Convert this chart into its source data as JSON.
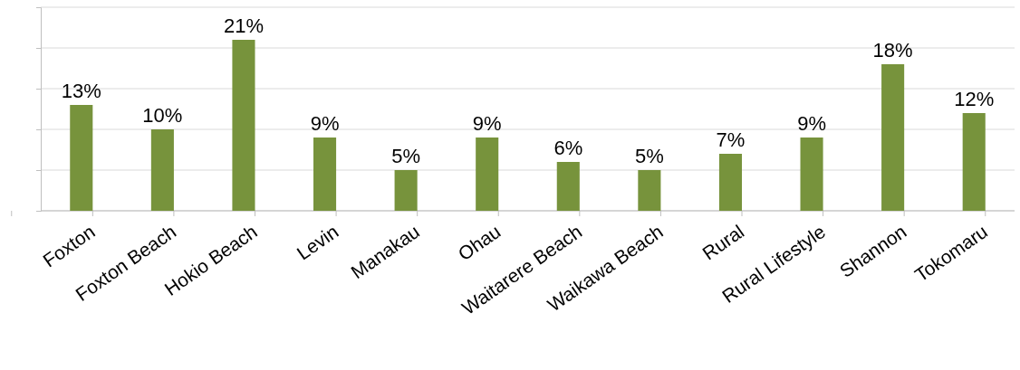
{
  "chart_data": {
    "type": "bar",
    "categories": [
      "Foxton",
      "Foxton Beach",
      "Hokio Beach",
      "Levin",
      "Manakau",
      "Ohau",
      "Waitarere Beach",
      "Waikawa Beach",
      "Rural",
      "Rural Lifestyle",
      "Shannon",
      "Tokomaru"
    ],
    "values": [
      13,
      10,
      21,
      9,
      5,
      9,
      6,
      5,
      7,
      9,
      18,
      12
    ],
    "value_labels": [
      "13%",
      "10%",
      "21%",
      "9%",
      "5%",
      "9%",
      "6%",
      "5%",
      "7%",
      "9%",
      "18%",
      "12%"
    ],
    "color": "#77933c",
    "ylim": [
      0,
      25
    ],
    "yticks": [
      {
        "value": 0,
        "label": null
      },
      {
        "value": 5,
        "label": null
      },
      {
        "value": 10,
        "label": null
      },
      {
        "value": 15,
        "label": null
      },
      {
        "value": 20,
        "label": null
      },
      {
        "value": 25,
        "label": null
      }
    ],
    "grid": "y",
    "tick_labels": "x"
  }
}
